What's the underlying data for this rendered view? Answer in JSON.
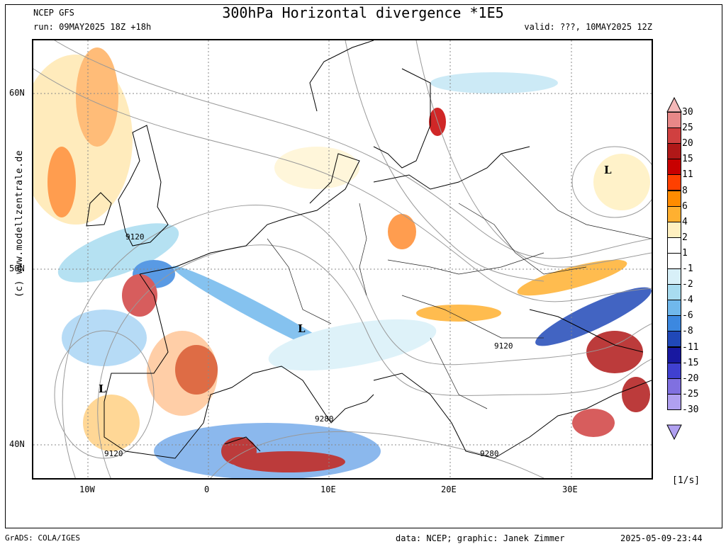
{
  "header": {
    "model": "NCEP GFS",
    "run": "run: 09MAY2025 18Z +18h",
    "title": "300hPa Horizontal divergence *1E5",
    "valid": "valid: ???, 10MAY2025 12Z"
  },
  "map": {
    "lat_labels": [
      "60N",
      "50N",
      "40N"
    ],
    "lon_labels": [
      "10W",
      "0",
      "10E",
      "20E",
      "30E"
    ],
    "contour_labels": [
      "9120",
      "9120",
      "9120",
      "9280",
      "9280"
    ],
    "pressure_markers": [
      "L",
      "L",
      "L"
    ]
  },
  "colorbar": {
    "labels": [
      "30",
      "25",
      "20",
      "15",
      "11",
      "8",
      "6",
      "4",
      "2",
      "1",
      "-1",
      "-2",
      "-4",
      "-6",
      "-8",
      "-11",
      "-15",
      "-20",
      "-25",
      "-30"
    ],
    "colors": [
      "#f4b8b8",
      "#e88888",
      "#d04040",
      "#b01818",
      "#c80000",
      "#ff4000",
      "#ff8c00",
      "#ffb030",
      "#fff0c0",
      "#ffffff",
      "#ffffff",
      "#d8f0f8",
      "#a8dcf0",
      "#70b8ec",
      "#3c88e0",
      "#2048b8",
      "#1818a0",
      "#4040d0",
      "#8070e0",
      "#b0a0f0"
    ],
    "units": "[1/s]"
  },
  "credits": {
    "website": "(c) www.modellzentrale.de",
    "grads": "GrADS: COLA/IGES",
    "data": "data: NCEP; graphic: Janek Zimmer",
    "timestamp": "2025-05-09-23:44"
  }
}
